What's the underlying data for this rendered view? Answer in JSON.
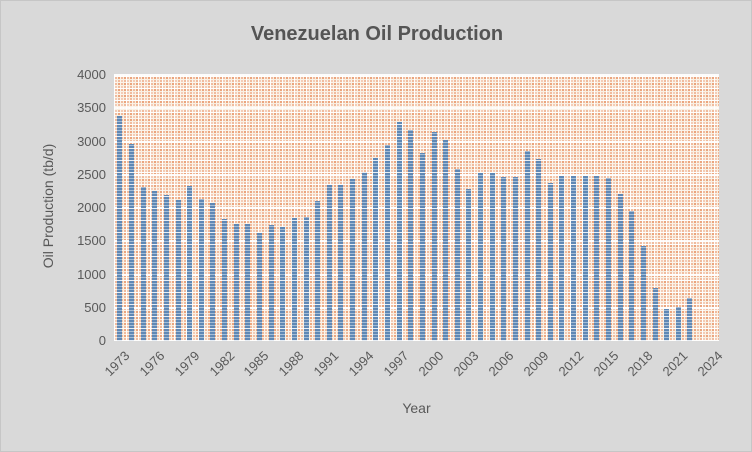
{
  "chart_data": {
    "type": "bar",
    "title": "Venezuelan Oil Production",
    "xlabel": "Year",
    "ylabel": "Oil Production (tb/d)",
    "ylim": [
      0,
      4000
    ],
    "y_ticks": [
      0,
      500,
      1000,
      1500,
      2000,
      2500,
      3000,
      3500,
      4000
    ],
    "grid": true,
    "legend": false,
    "x_tick_labels": [
      "1973",
      "1976",
      "1979",
      "1982",
      "1985",
      "1988",
      "1991",
      "1994",
      "1997",
      "2000",
      "2003",
      "2006",
      "2009",
      "2012",
      "2015",
      "2018",
      "2021",
      "2024"
    ],
    "categories": [
      "1973",
      "1974",
      "1975",
      "1976",
      "1977",
      "1978",
      "1979",
      "1980",
      "1981",
      "1982",
      "1983",
      "1984",
      "1985",
      "1986",
      "1987",
      "1988",
      "1989",
      "1990",
      "1991",
      "1992",
      "1993",
      "1994",
      "1995",
      "1996",
      "1997",
      "1998",
      "1999",
      "2000",
      "2001",
      "2002",
      "2003",
      "2004",
      "2005",
      "2006",
      "2007",
      "2008",
      "2009",
      "2010",
      "2011",
      "2012",
      "2013",
      "2014",
      "2015",
      "2016",
      "2017",
      "2018",
      "2019",
      "2020",
      "2021",
      "2022",
      "2023",
      "2024"
    ],
    "values": [
      3380,
      2970,
      2320,
      2260,
      2190,
      2120,
      2330,
      2130,
      2080,
      1840,
      1760,
      1760,
      1630,
      1750,
      1710,
      1850,
      1870,
      2100,
      2350,
      2340,
      2440,
      2540,
      2750,
      2950,
      3300,
      3180,
      2830,
      3150,
      3020,
      2590,
      2290,
      2520,
      2530,
      2470,
      2460,
      2860,
      2740,
      2370,
      2480,
      2480,
      2480,
      2480,
      2450,
      2210,
      1960,
      1430,
      800,
      480,
      510,
      650,
      null,
      null
    ]
  },
  "colors": {
    "background": "#d9d9d9",
    "bar_blue": "#5f88b5",
    "pattern_orange": "#eba47d",
    "pattern_cream": "#f9eedf",
    "gridline_white": "#ffffff",
    "text_gray": "#595959"
  }
}
